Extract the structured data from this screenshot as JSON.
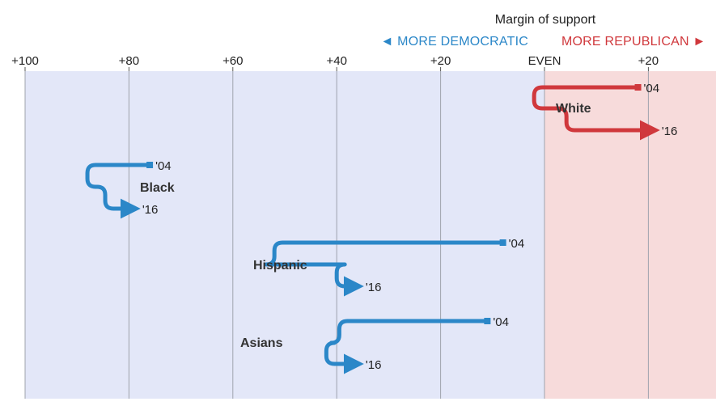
{
  "chart_data": {
    "type": "line",
    "title": "Margin of support",
    "direction_labels": {
      "left": "◄ MORE DEMOCRATIC",
      "right": "MORE REPUBLICAN ►"
    },
    "x_axis": {
      "min": -100,
      "max": 33,
      "ticks": [
        -100,
        -80,
        -60,
        -40,
        -20,
        0,
        20
      ],
      "tick_labels": [
        "+100",
        "+80",
        "+60",
        "+40",
        "+20",
        "EVEN",
        "+20"
      ]
    },
    "series": [
      {
        "name": "White",
        "party": "R",
        "start_label": "'04",
        "end_label": "'16",
        "values": [
          18,
          21
        ]
      },
      {
        "name": "Black",
        "party": "D",
        "start_label": "'04",
        "end_label": "'16",
        "values": [
          -76,
          -79
        ]
      },
      {
        "name": "Hispanic",
        "party": "D",
        "start_label": "'04",
        "end_label": "'16",
        "values": [
          -8,
          -36
        ]
      },
      {
        "name": "Asians",
        "party": "D",
        "start_label": "'04",
        "end_label": "'16",
        "values": [
          -11,
          -36
        ]
      }
    ],
    "colors": {
      "democratic": "#2b87c8",
      "republican": "#d0383c",
      "dem_bg": "#e3e7f8",
      "rep_bg": "#f7dbdb",
      "grid": "#9fa3ad"
    }
  }
}
